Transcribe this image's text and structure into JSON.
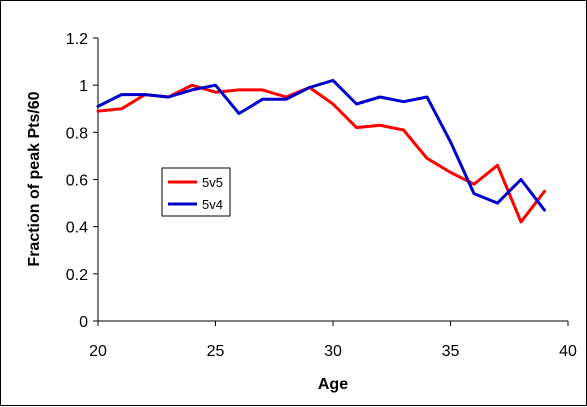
{
  "chart_data": {
    "type": "line",
    "xlabel": "Age",
    "ylabel": "Fraction of peak Pts/60",
    "xlim": [
      20,
      40
    ],
    "ylim": [
      0,
      1.2
    ],
    "xticks": [
      20,
      25,
      30,
      35,
      40
    ],
    "yticks": [
      0,
      0.2,
      0.4,
      0.6,
      0.8,
      1,
      1.2
    ],
    "grid": false,
    "legend_position": "left-middle",
    "x": [
      20,
      21,
      22,
      23,
      24,
      25,
      26,
      27,
      28,
      29,
      30,
      31,
      32,
      33,
      34,
      35,
      36,
      37,
      38,
      39
    ],
    "series": [
      {
        "name": "5v5",
        "color": "#ff0000",
        "values": [
          0.89,
          0.9,
          0.96,
          0.95,
          1.0,
          0.97,
          0.98,
          0.98,
          0.95,
          0.99,
          0.92,
          0.82,
          0.83,
          0.81,
          0.69,
          0.63,
          0.58,
          0.66,
          0.42,
          0.55
        ]
      },
      {
        "name": "5v4",
        "color": "#0000cc",
        "values": [
          0.91,
          0.96,
          0.96,
          0.95,
          0.98,
          1.0,
          0.88,
          0.94,
          0.94,
          0.99,
          1.02,
          0.92,
          0.95,
          0.93,
          0.95,
          0.76,
          0.54,
          0.5,
          0.6,
          0.47
        ]
      }
    ]
  }
}
